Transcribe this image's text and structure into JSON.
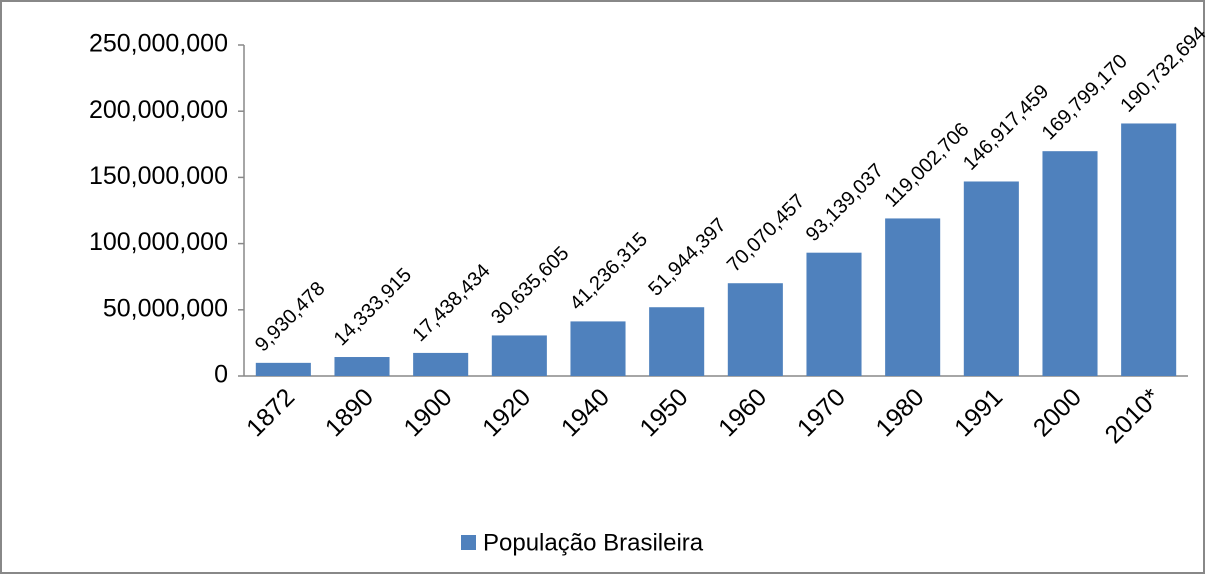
{
  "chart_data": {
    "type": "bar",
    "categories": [
      "1872",
      "1890",
      "1900",
      "1920",
      "1940",
      "1950",
      "1960",
      "1970",
      "1980",
      "1991",
      "2000",
      "2010*"
    ],
    "series": [
      {
        "name": "População Brasileira",
        "color": "#4f81bd",
        "values": [
          9930478,
          14333915,
          17438434,
          30635605,
          41236315,
          51944397,
          70070457,
          93139037,
          119002706,
          146917459,
          169799170,
          190732694
        ],
        "value_labels": [
          "9,930,478",
          "14,333,915",
          "17,438,434",
          "30,635,605",
          "41,236,315",
          "51,944,397",
          "70,070,457",
          "93,139,037",
          "119,002,706",
          "146,917,459",
          "169,799,170",
          "190,732,694"
        ]
      }
    ],
    "ylim": [
      0,
      250000000
    ],
    "yticks": [
      0,
      {
        "value": 50000000,
        "label": "50,000,000"
      },
      {
        "value": 100000000,
        "label": "100,000,000"
      },
      {
        "value": 150000000,
        "label": "150,000,000"
      },
      {
        "value": 200000000,
        "label": "200,000,000"
      },
      {
        "value": 250000000,
        "label": "250,000,000"
      }
    ],
    "grid": false,
    "legend": "bottom"
  }
}
